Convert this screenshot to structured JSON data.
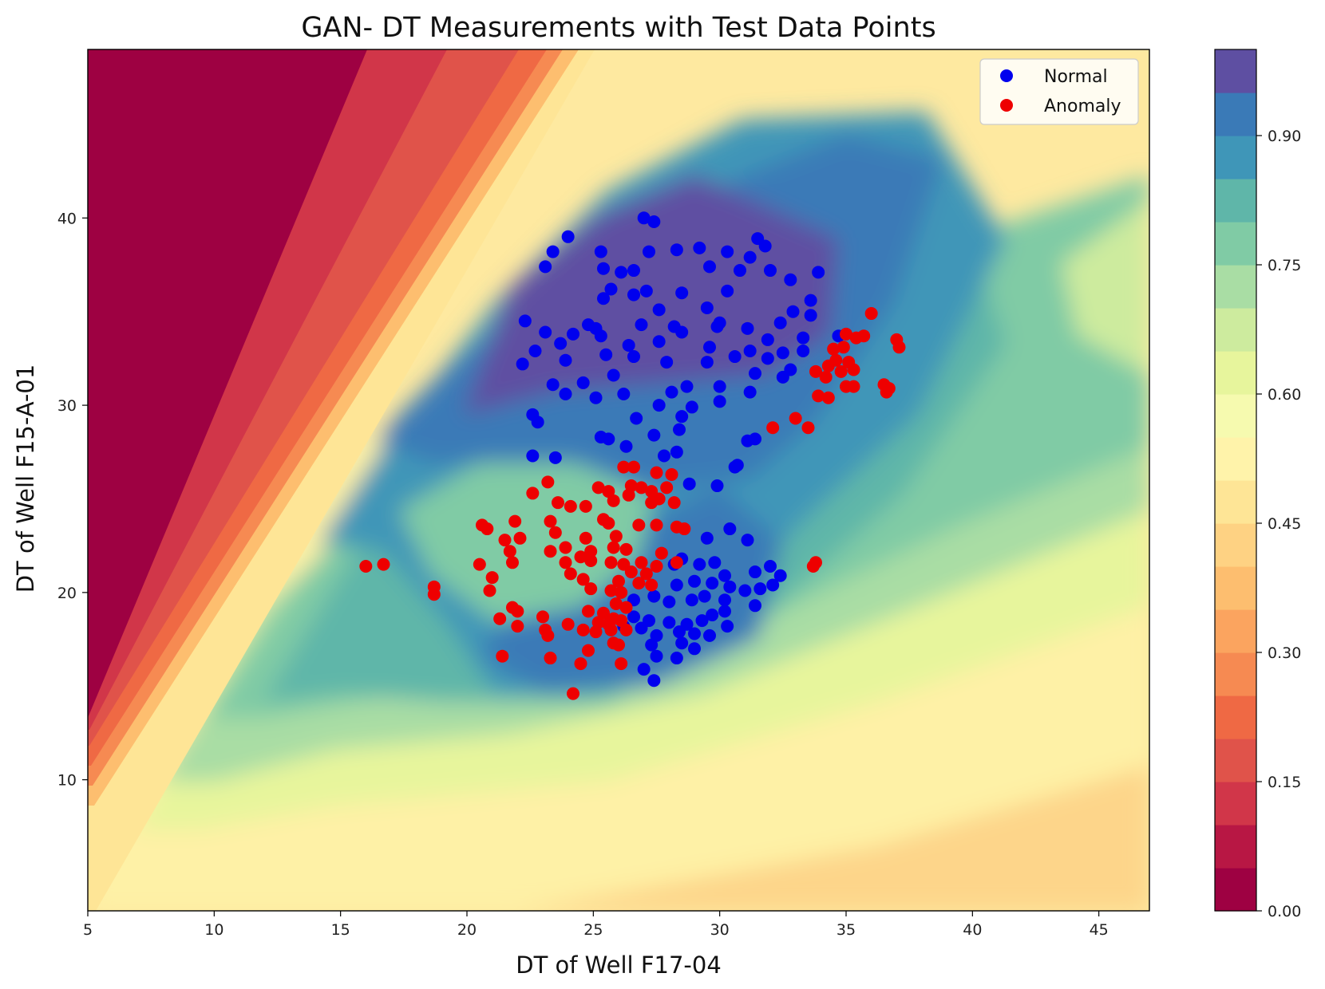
{
  "chart_data": {
    "type": "scatter",
    "title": "GAN- DT Measurements with Test Data Points",
    "xlabel": "DT of Well F17-04",
    "ylabel": "DT of Well F15-A-01",
    "xlim": [
      5,
      47
    ],
    "ylim": [
      3,
      49
    ],
    "xticks": [
      5,
      10,
      15,
      20,
      25,
      30,
      35,
      40,
      45
    ],
    "yticks": [
      10,
      20,
      30,
      40
    ],
    "grid": false,
    "legend_position": "top-right",
    "series": [
      {
        "name": "Normal",
        "color": "#0000ee",
        "points": [
          [
            27.0,
            40.0
          ],
          [
            27.4,
            39.8
          ],
          [
            24.0,
            39.0
          ],
          [
            31.5,
            38.9
          ],
          [
            23.4,
            38.2
          ],
          [
            23.1,
            37.4
          ],
          [
            25.3,
            38.2
          ],
          [
            27.2,
            38.2
          ],
          [
            28.3,
            38.3
          ],
          [
            29.2,
            38.4
          ],
          [
            30.3,
            38.2
          ],
          [
            31.8,
            38.5
          ],
          [
            25.4,
            37.3
          ],
          [
            26.1,
            37.1
          ],
          [
            26.6,
            37.2
          ],
          [
            29.6,
            37.4
          ],
          [
            31.2,
            37.9
          ],
          [
            33.9,
            37.1
          ],
          [
            32.0,
            37.2
          ],
          [
            30.8,
            37.2
          ],
          [
            25.7,
            36.2
          ],
          [
            27.1,
            36.1
          ],
          [
            28.5,
            36.0
          ],
          [
            32.8,
            36.7
          ],
          [
            25.4,
            35.7
          ],
          [
            26.6,
            35.9
          ],
          [
            30.3,
            36.1
          ],
          [
            33.6,
            35.6
          ],
          [
            27.6,
            35.1
          ],
          [
            29.5,
            35.2
          ],
          [
            32.9,
            35.0
          ],
          [
            22.3,
            34.5
          ],
          [
            24.8,
            34.3
          ],
          [
            25.1,
            34.1
          ],
          [
            26.9,
            34.3
          ],
          [
            28.2,
            34.2
          ],
          [
            30.0,
            34.4
          ],
          [
            31.1,
            34.1
          ],
          [
            33.6,
            34.8
          ],
          [
            32.4,
            34.4
          ],
          [
            23.1,
            33.9
          ],
          [
            24.2,
            33.8
          ],
          [
            25.3,
            33.7
          ],
          [
            28.5,
            33.9
          ],
          [
            29.9,
            34.2
          ],
          [
            31.9,
            33.5
          ],
          [
            33.3,
            33.6
          ],
          [
            22.7,
            32.9
          ],
          [
            23.7,
            33.3
          ],
          [
            26.4,
            33.2
          ],
          [
            27.6,
            33.4
          ],
          [
            29.6,
            33.1
          ],
          [
            31.2,
            32.9
          ],
          [
            32.5,
            32.8
          ],
          [
            34.7,
            33.7
          ],
          [
            22.2,
            32.2
          ],
          [
            23.9,
            32.4
          ],
          [
            25.5,
            32.7
          ],
          [
            26.6,
            32.6
          ],
          [
            27.9,
            32.3
          ],
          [
            29.5,
            32.3
          ],
          [
            30.6,
            32.6
          ],
          [
            31.9,
            32.5
          ],
          [
            33.3,
            32.9
          ],
          [
            23.4,
            31.1
          ],
          [
            24.6,
            31.2
          ],
          [
            25.8,
            31.6
          ],
          [
            28.7,
            31.0
          ],
          [
            30.0,
            31.0
          ],
          [
            31.4,
            31.7
          ],
          [
            32.8,
            31.9
          ],
          [
            23.9,
            30.6
          ],
          [
            25.1,
            30.4
          ],
          [
            26.2,
            30.6
          ],
          [
            28.1,
            30.7
          ],
          [
            30.0,
            30.2
          ],
          [
            31.2,
            30.7
          ],
          [
            32.5,
            31.5
          ],
          [
            27.6,
            30.0
          ],
          [
            28.9,
            29.9
          ],
          [
            22.6,
            29.5
          ],
          [
            22.8,
            29.1
          ],
          [
            26.7,
            29.3
          ],
          [
            28.5,
            29.4
          ],
          [
            31.1,
            28.1
          ],
          [
            31.4,
            28.2
          ],
          [
            25.3,
            28.3
          ],
          [
            25.6,
            28.2
          ],
          [
            26.3,
            27.8
          ],
          [
            27.4,
            28.4
          ],
          [
            28.4,
            28.7
          ],
          [
            22.6,
            27.3
          ],
          [
            23.5,
            27.2
          ],
          [
            27.8,
            27.3
          ],
          [
            28.3,
            27.5
          ],
          [
            30.7,
            26.8
          ],
          [
            30.6,
            26.7
          ],
          [
            29.9,
            25.7
          ],
          [
            28.8,
            25.8
          ],
          [
            30.4,
            23.4
          ],
          [
            31.1,
            22.8
          ],
          [
            29.5,
            22.9
          ],
          [
            28.2,
            21.5
          ],
          [
            28.5,
            21.8
          ],
          [
            29.2,
            21.5
          ],
          [
            29.8,
            21.6
          ],
          [
            30.2,
            20.9
          ],
          [
            31.4,
            21.1
          ],
          [
            32.0,
            21.4
          ],
          [
            32.4,
            20.9
          ],
          [
            28.3,
            20.4
          ],
          [
            29.0,
            20.6
          ],
          [
            29.7,
            20.5
          ],
          [
            30.4,
            20.3
          ],
          [
            31.0,
            20.1
          ],
          [
            31.6,
            20.2
          ],
          [
            32.1,
            20.4
          ],
          [
            26.6,
            19.6
          ],
          [
            27.4,
            19.8
          ],
          [
            28.0,
            19.5
          ],
          [
            28.9,
            19.6
          ],
          [
            29.4,
            19.8
          ],
          [
            30.2,
            19.6
          ],
          [
            31.4,
            19.3
          ],
          [
            26.6,
            18.7
          ],
          [
            27.2,
            18.5
          ],
          [
            28.0,
            18.4
          ],
          [
            28.7,
            18.3
          ],
          [
            29.3,
            18.5
          ],
          [
            29.7,
            18.8
          ],
          [
            30.2,
            19.0
          ],
          [
            26.2,
            18.2
          ],
          [
            26.9,
            18.1
          ],
          [
            27.5,
            17.7
          ],
          [
            28.4,
            17.9
          ],
          [
            29.0,
            17.8
          ],
          [
            29.6,
            17.7
          ],
          [
            30.3,
            18.2
          ],
          [
            27.3,
            17.2
          ],
          [
            28.5,
            17.3
          ],
          [
            29.0,
            17.0
          ],
          [
            27.5,
            16.6
          ],
          [
            28.3,
            16.5
          ],
          [
            27.0,
            15.9
          ],
          [
            27.4,
            15.3
          ]
        ]
      },
      {
        "name": "Anomaly",
        "color": "#ee0000",
        "points": [
          [
            36.0,
            34.9
          ],
          [
            35.0,
            33.8
          ],
          [
            35.4,
            33.6
          ],
          [
            35.7,
            33.7
          ],
          [
            37.0,
            33.5
          ],
          [
            37.1,
            33.1
          ],
          [
            34.5,
            33.0
          ],
          [
            34.9,
            33.1
          ],
          [
            34.6,
            32.4
          ],
          [
            35.1,
            32.3
          ],
          [
            34.3,
            32.1
          ],
          [
            35.3,
            31.9
          ],
          [
            34.8,
            31.8
          ],
          [
            33.8,
            31.8
          ],
          [
            34.2,
            31.5
          ],
          [
            35.0,
            31.0
          ],
          [
            35.3,
            31.0
          ],
          [
            36.5,
            31.1
          ],
          [
            36.7,
            30.9
          ],
          [
            36.6,
            30.7
          ],
          [
            33.9,
            30.5
          ],
          [
            34.3,
            30.4
          ],
          [
            33.0,
            29.3
          ],
          [
            32.1,
            28.8
          ],
          [
            33.5,
            28.8
          ],
          [
            26.2,
            26.7
          ],
          [
            26.6,
            26.7
          ],
          [
            27.5,
            26.4
          ],
          [
            28.1,
            26.3
          ],
          [
            23.2,
            25.9
          ],
          [
            22.6,
            25.3
          ],
          [
            25.2,
            25.6
          ],
          [
            25.6,
            25.4
          ],
          [
            26.5,
            25.7
          ],
          [
            26.9,
            25.6
          ],
          [
            27.3,
            25.4
          ],
          [
            27.9,
            25.6
          ],
          [
            26.4,
            25.2
          ],
          [
            27.6,
            25.0
          ],
          [
            28.2,
            24.8
          ],
          [
            23.6,
            24.8
          ],
          [
            24.1,
            24.6
          ],
          [
            24.7,
            24.6
          ],
          [
            25.8,
            24.9
          ],
          [
            27.3,
            24.8
          ],
          [
            21.9,
            23.8
          ],
          [
            23.3,
            23.8
          ],
          [
            25.4,
            23.9
          ],
          [
            25.6,
            23.7
          ],
          [
            26.8,
            23.6
          ],
          [
            27.5,
            23.6
          ],
          [
            28.3,
            23.5
          ],
          [
            28.6,
            23.4
          ],
          [
            20.6,
            23.6
          ],
          [
            20.8,
            23.4
          ],
          [
            23.5,
            23.2
          ],
          [
            21.5,
            22.8
          ],
          [
            22.1,
            22.9
          ],
          [
            24.7,
            22.9
          ],
          [
            25.9,
            23.0
          ],
          [
            23.3,
            22.2
          ],
          [
            23.9,
            22.4
          ],
          [
            24.9,
            22.2
          ],
          [
            25.8,
            22.4
          ],
          [
            26.3,
            22.3
          ],
          [
            27.7,
            22.1
          ],
          [
            21.7,
            22.2
          ],
          [
            24.5,
            21.9
          ],
          [
            24.9,
            21.7
          ],
          [
            25.7,
            21.6
          ],
          [
            26.2,
            21.5
          ],
          [
            26.9,
            21.6
          ],
          [
            28.3,
            21.6
          ],
          [
            16.0,
            21.4
          ],
          [
            16.7,
            21.5
          ],
          [
            20.5,
            21.5
          ],
          [
            21.8,
            21.6
          ],
          [
            23.9,
            21.6
          ],
          [
            26.5,
            21.1
          ],
          [
            27.1,
            21.0
          ],
          [
            27.5,
            21.4
          ],
          [
            33.7,
            21.4
          ],
          [
            33.8,
            21.6
          ],
          [
            24.1,
            21.0
          ],
          [
            21.0,
            20.8
          ],
          [
            24.6,
            20.7
          ],
          [
            26.0,
            20.6
          ],
          [
            26.8,
            20.5
          ],
          [
            27.3,
            20.4
          ],
          [
            18.7,
            20.3
          ],
          [
            18.7,
            19.9
          ],
          [
            20.9,
            20.1
          ],
          [
            24.9,
            20.2
          ],
          [
            25.7,
            20.1
          ],
          [
            26.1,
            20.0
          ],
          [
            25.9,
            19.4
          ],
          [
            26.3,
            19.2
          ],
          [
            21.8,
            19.2
          ],
          [
            22.0,
            19.0
          ],
          [
            24.8,
            19.0
          ],
          [
            25.4,
            18.9
          ],
          [
            25.8,
            18.6
          ],
          [
            21.3,
            18.6
          ],
          [
            23.0,
            18.7
          ],
          [
            25.2,
            18.4
          ],
          [
            25.6,
            18.3
          ],
          [
            26.1,
            18.5
          ],
          [
            22.0,
            18.2
          ],
          [
            23.1,
            18.0
          ],
          [
            24.0,
            18.3
          ],
          [
            24.6,
            18.0
          ],
          [
            25.1,
            17.9
          ],
          [
            25.7,
            18.0
          ],
          [
            26.3,
            18.0
          ],
          [
            23.2,
            17.7
          ],
          [
            25.8,
            17.3
          ],
          [
            26.0,
            17.2
          ],
          [
            24.8,
            16.9
          ],
          [
            21.4,
            16.6
          ],
          [
            23.3,
            16.5
          ],
          [
            24.5,
            16.2
          ],
          [
            26.1,
            16.2
          ],
          [
            24.2,
            14.6
          ]
        ]
      }
    ],
    "colorbar": {
      "range": [
        0,
        1.0
      ],
      "ticks": [
        "0.00",
        "0.15",
        "0.30",
        "0.45",
        "0.60",
        "0.75",
        "0.90"
      ],
      "levels": [
        "#9e0142",
        "#b81744",
        "#d13649",
        "#e0534a",
        "#ef6944",
        "#f68a52",
        "#fba45f",
        "#fdbe6f",
        "#fed283",
        "#fee596",
        "#fff3aa",
        "#f6faaf",
        "#e7f59c",
        "#cdeb9e",
        "#a9dda4",
        "#80cba5",
        "#5fb6a9",
        "#3f96b8",
        "#3a7ab7",
        "#5e4fa2"
      ]
    }
  }
}
